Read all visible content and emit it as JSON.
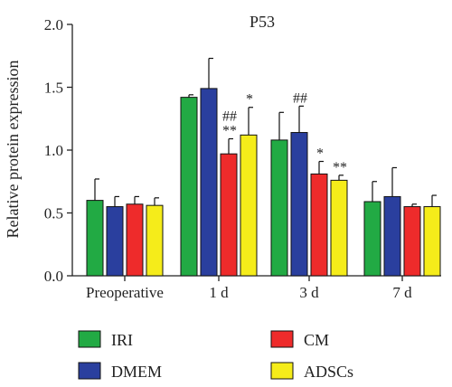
{
  "chart_data": {
    "type": "bar",
    "title": "P53",
    "xlabel": "",
    "ylabel": "Relative protein expression",
    "ylim": [
      0,
      2.0
    ],
    "yticks": [
      "0.0",
      "0.5",
      "1.0",
      "1.5",
      "2.0"
    ],
    "categories": [
      "Preoperative",
      "1 d",
      "3 d",
      "7 d"
    ],
    "series": [
      {
        "name": "IRI",
        "color": "#22aa44",
        "values": [
          0.6,
          1.42,
          1.08,
          0.59
        ],
        "errors": [
          0.17,
          0.02,
          0.22,
          0.16
        ]
      },
      {
        "name": "DMEM",
        "color": "#2a3f9e",
        "values": [
          0.55,
          1.49,
          1.14,
          0.63
        ],
        "errors": [
          0.08,
          0.24,
          0.21,
          0.23
        ]
      },
      {
        "name": "CM",
        "color": "#ee2b2b",
        "values": [
          0.57,
          0.97,
          0.81,
          0.55
        ],
        "errors": [
          0.06,
          0.12,
          0.1,
          0.02
        ]
      },
      {
        "name": "ADSCs",
        "color": "#f5ec1a",
        "values": [
          0.56,
          1.12,
          0.76,
          0.55
        ],
        "errors": [
          0.06,
          0.22,
          0.04,
          0.09
        ]
      }
    ],
    "annotations": [
      {
        "category": "1 d",
        "series": "CM",
        "lines": [
          "##",
          "**"
        ]
      },
      {
        "category": "1 d",
        "series": "ADSCs",
        "lines": [
          "*"
        ]
      },
      {
        "category": "3 d",
        "series": "DMEM",
        "lines": [
          "##"
        ]
      },
      {
        "category": "3 d",
        "series": "CM",
        "lines": [
          "*"
        ]
      },
      {
        "category": "3 d",
        "series": "ADSCs",
        "lines": [
          "**"
        ]
      }
    ],
    "legend": {
      "placement": "bottom",
      "columns": 2
    }
  }
}
